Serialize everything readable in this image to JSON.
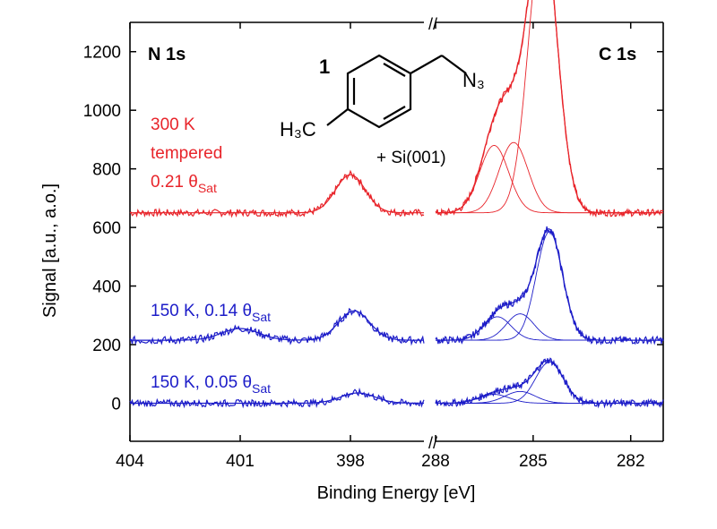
{
  "chart_data": {
    "type": "line",
    "xlabel": "Binding Energy [eV]",
    "ylabel": "Signal [a.u., a.o.]",
    "ylim": [
      -130,
      1300
    ],
    "yticks": [
      0,
      200,
      400,
      600,
      800,
      1000,
      1200
    ],
    "panels": [
      {
        "title": "N 1s",
        "xlim": [
          404,
          396
        ],
        "xticks": [
          404,
          401,
          398
        ]
      },
      {
        "title": "C 1s",
        "xlim": [
          288,
          281
        ],
        "xticks": [
          288,
          285,
          282
        ]
      }
    ],
    "broken_axis_label": "//",
    "molecule": {
      "label": "1",
      "substituent_left": "H₃C",
      "substituent_right": "N₃",
      "substrate": "+ Si(001)"
    },
    "annotations": [
      {
        "lines": [
          "300 K",
          "tempered",
          "0.21 θ"
        ],
        "sub": "Sat",
        "color": "#e8242a"
      },
      {
        "lines": [
          "150 K, 0.14 θ"
        ],
        "sub": "Sat",
        "color": "#1c1cc8"
      },
      {
        "lines": [
          "150 K, 0.05 θ"
        ],
        "sub": "Sat",
        "color": "#1c1cc8"
      }
    ],
    "series": [
      {
        "color": "#e8242a",
        "baseline": 650,
        "N1s_peaks": [
          {
            "center": 398.0,
            "height": 130,
            "fwhm": 0.95
          }
        ],
        "C1s_peaks": [
          {
            "center": 284.7,
            "height": 960,
            "fwhm": 1.05
          },
          {
            "center": 285.6,
            "height": 240,
            "fwhm": 1.05
          },
          {
            "center": 286.2,
            "height": 230,
            "fwhm": 1.05
          }
        ],
        "noise": 12
      },
      {
        "color": "#1c1cc8",
        "baseline": 215,
        "N1s_peaks": [
          {
            "center": 397.9,
            "height": 100,
            "fwhm": 1.0
          },
          {
            "center": 401.0,
            "height": 40,
            "fwhm": 1.2
          }
        ],
        "C1s_peaks": [
          {
            "center": 284.5,
            "height": 370,
            "fwhm": 0.95
          },
          {
            "center": 285.4,
            "height": 90,
            "fwhm": 1.0
          },
          {
            "center": 286.1,
            "height": 80,
            "fwhm": 1.0
          }
        ],
        "noise": 13
      },
      {
        "color": "#1c1cc8",
        "baseline": 0,
        "N1s_peaks": [
          {
            "center": 397.8,
            "height": 35,
            "fwhm": 1.1
          }
        ],
        "C1s_peaks": [
          {
            "center": 284.5,
            "height": 140,
            "fwhm": 1.0
          },
          {
            "center": 285.4,
            "height": 40,
            "fwhm": 1.1
          },
          {
            "center": 286.2,
            "height": 30,
            "fwhm": 1.1
          }
        ],
        "noise": 12
      }
    ]
  }
}
